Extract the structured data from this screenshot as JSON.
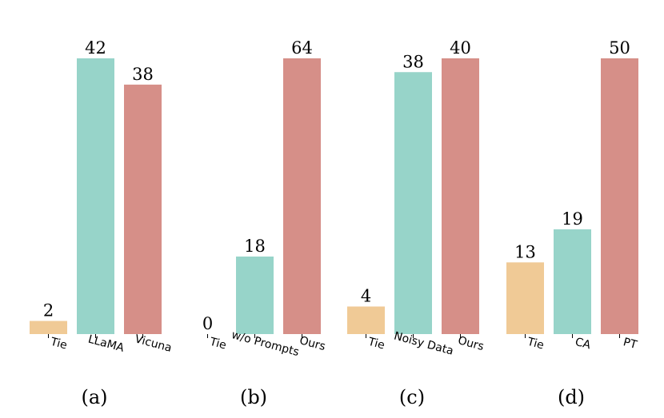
{
  "colors": {
    "tie": "#f0ca96",
    "model_a": "#97d4c9",
    "model_b": "#d68f88"
  },
  "chart_data": [
    {
      "type": "bar",
      "panel": "(a)",
      "categories": [
        "Tie",
        "LLaMA",
        "Vicuna"
      ],
      "values": [
        2,
        42,
        38
      ]
    },
    {
      "type": "bar",
      "panel": "(b)",
      "categories": [
        "Tie",
        "w/o Prompts",
        "Ours"
      ],
      "values": [
        0,
        18,
        64
      ]
    },
    {
      "type": "bar",
      "panel": "(c)",
      "categories": [
        "Tie",
        "Noisy Data",
        "Ours"
      ],
      "values": [
        4,
        38,
        40
      ]
    },
    {
      "type": "bar",
      "panel": "(d)",
      "categories": [
        "Tie",
        "CA",
        "PT"
      ],
      "values": [
        13,
        19,
        50
      ]
    }
  ]
}
